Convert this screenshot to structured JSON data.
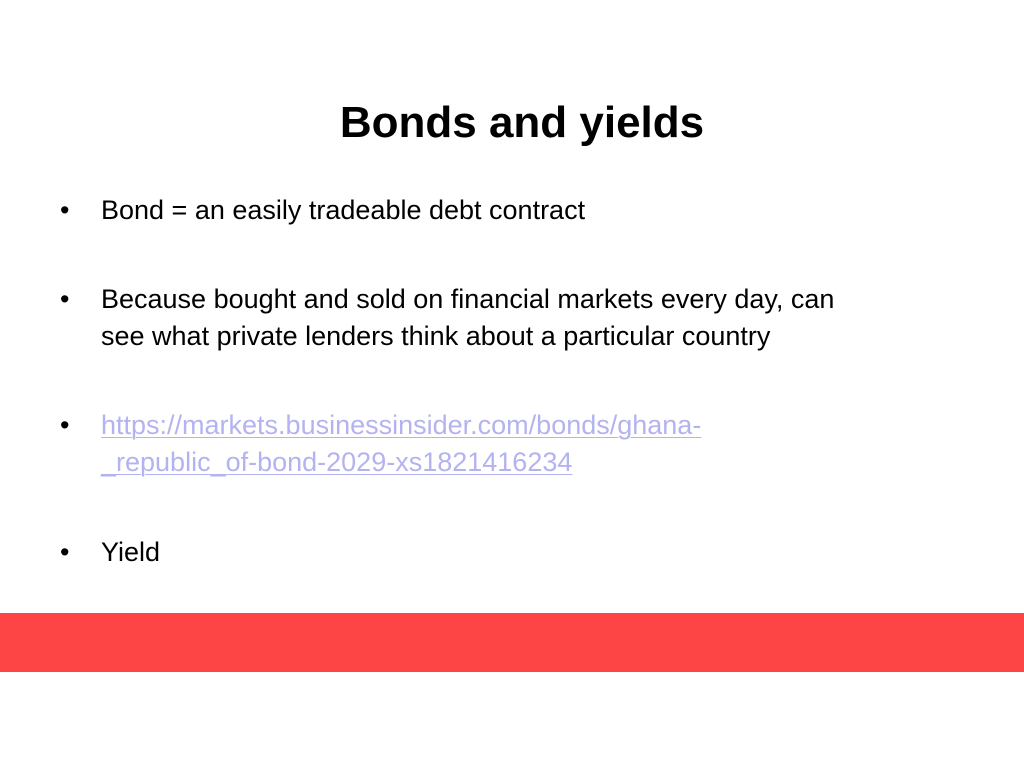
{
  "slide": {
    "title": "Bonds and yields",
    "bullets": [
      {
        "lines": [
          "Bond = an easily tradeable debt contract"
        ]
      },
      {
        "lines": [
          "Because bought and sold on financial markets every day, can",
          "see what private lenders think about a particular country"
        ]
      },
      {
        "lines": [
          "https://markets.businessinsider.com/bonds/ghana-",
          "_republic_of-bond-2029-xs1821416234"
        ],
        "is_link": true
      },
      {
        "lines": [
          "Yield"
        ]
      }
    ],
    "bullet_symbol": "•"
  },
  "colors": {
    "accent_band": "#fc4544",
    "link": "#b3b3f0",
    "text": "#000000",
    "background": "#ffffff"
  }
}
